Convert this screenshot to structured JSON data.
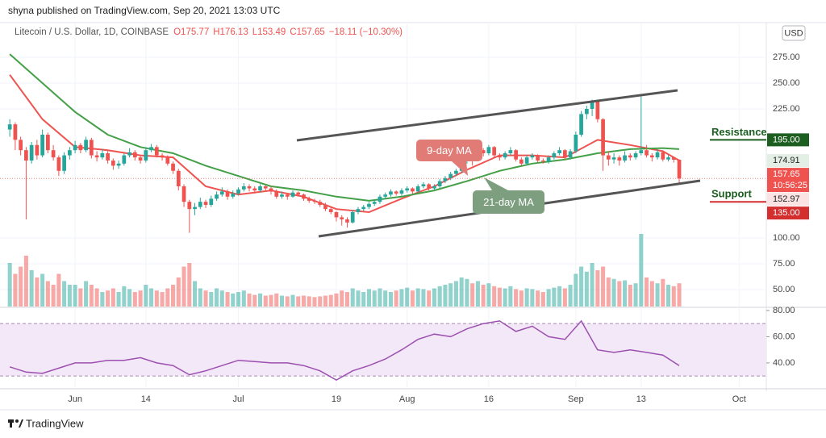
{
  "chart_data": {
    "type": "candlestick",
    "header": "shyna published on TradingView.com, Sep 20, 2021 13:03 UTC",
    "title": "Litecoin / U.S. Dollar, 1D, COINBASE",
    "ohlc_text": [
      "O175.77",
      "H176.13",
      "L153.49",
      "C157.65",
      "−18.11 (−10.30%)"
    ],
    "currency": "USD",
    "footer": "TradingView",
    "up_color": "#26a69a",
    "down_color": "#ef5350",
    "xlim": [
      -1.8,
      139
    ],
    "xticks": [
      {
        "value": 12,
        "label": "Jun"
      },
      {
        "value": 25,
        "label": "14"
      },
      {
        "value": 42,
        "label": "Jul"
      },
      {
        "value": 60,
        "label": "19"
      },
      {
        "value": 73,
        "label": "Aug"
      },
      {
        "value": 88,
        "label": "16"
      },
      {
        "value": 104,
        "label": "Sep"
      },
      {
        "value": 116,
        "label": "13"
      },
      {
        "value": 134,
        "label": "Oct"
      }
    ],
    "ylim": [
      33.6,
      307
    ],
    "yticks": [
      {
        "value": 275,
        "label": "275.00"
      },
      {
        "value": 250,
        "label": "250.00"
      },
      {
        "value": 225,
        "label": "225.00"
      },
      {
        "value": 100,
        "label": "100.00"
      },
      {
        "value": 75,
        "label": "75.00"
      },
      {
        "value": 50,
        "label": "50.00"
      }
    ],
    "grid": true,
    "candles": [
      [
        205,
        215,
        198,
        210
      ],
      [
        210,
        212,
        185,
        195
      ],
      [
        195,
        198,
        180,
        185
      ],
      [
        185,
        188,
        118,
        175
      ],
      [
        175,
        193,
        172,
        190
      ],
      [
        190,
        195,
        176,
        180
      ],
      [
        180,
        205,
        178,
        200
      ],
      [
        200,
        202,
        182,
        185
      ],
      [
        185,
        190,
        175,
        178
      ],
      [
        178,
        180,
        160,
        165
      ],
      [
        165,
        183,
        162,
        180
      ],
      [
        180,
        188,
        176,
        185
      ],
      [
        185,
        194,
        182,
        190
      ],
      [
        190,
        192,
        182,
        185
      ],
      [
        185,
        198,
        183,
        195
      ],
      [
        195,
        197,
        177,
        180
      ],
      [
        180,
        184,
        174,
        178
      ],
      [
        178,
        186,
        176,
        182
      ],
      [
        182,
        184,
        172,
        175
      ],
      [
        175,
        177,
        166,
        170
      ],
      [
        170,
        175,
        167,
        172
      ],
      [
        172,
        182,
        170,
        180
      ],
      [
        180,
        187,
        178,
        183
      ],
      [
        183,
        185,
        175,
        178
      ],
      [
        178,
        180,
        172,
        175
      ],
      [
        175,
        188,
        173,
        185
      ],
      [
        185,
        191,
        183,
        188
      ],
      [
        188,
        190,
        178,
        180
      ],
      [
        180,
        182,
        175,
        178
      ],
      [
        178,
        180,
        170,
        172
      ],
      [
        172,
        174,
        162,
        165
      ],
      [
        165,
        167,
        146,
        150
      ],
      [
        150,
        152,
        130,
        135
      ],
      [
        135,
        137,
        105,
        128
      ],
      [
        128,
        134,
        122,
        130
      ],
      [
        130,
        139,
        128,
        135
      ],
      [
        135,
        137,
        129,
        132
      ],
      [
        132,
        141,
        130,
        138
      ],
      [
        138,
        145,
        136,
        142
      ],
      [
        142,
        149,
        140,
        145
      ],
      [
        145,
        147,
        137,
        140
      ],
      [
        140,
        146,
        138,
        143
      ],
      [
        143,
        149,
        141,
        147
      ],
      [
        147,
        153,
        145,
        150
      ],
      [
        150,
        152,
        145,
        148
      ],
      [
        148,
        150,
        143,
        146
      ],
      [
        146,
        152,
        144,
        150
      ],
      [
        150,
        151,
        145,
        148
      ],
      [
        148,
        150,
        142,
        145
      ],
      [
        145,
        147,
        138,
        140
      ],
      [
        140,
        145,
        138,
        142
      ],
      [
        142,
        143,
        137,
        140
      ],
      [
        140,
        146,
        139,
        144
      ],
      [
        144,
        145,
        140,
        142
      ],
      [
        142,
        143,
        136,
        138
      ],
      [
        138,
        140,
        134,
        136
      ],
      [
        136,
        138,
        133,
        135
      ],
      [
        135,
        137,
        130,
        132
      ],
      [
        132,
        134,
        126,
        128
      ],
      [
        128,
        130,
        123,
        125
      ],
      [
        125,
        126,
        116,
        120
      ],
      [
        120,
        122,
        112,
        118
      ],
      [
        118,
        120,
        110,
        115
      ],
      [
        115,
        127,
        114,
        125
      ],
      [
        125,
        130,
        123,
        128
      ],
      [
        128,
        132,
        126,
        130
      ],
      [
        130,
        135,
        128,
        133
      ],
      [
        133,
        137,
        131,
        135
      ],
      [
        135,
        142,
        133,
        140
      ],
      [
        140,
        144,
        138,
        142
      ],
      [
        142,
        147,
        140,
        145
      ],
      [
        145,
        146,
        141,
        143
      ],
      [
        143,
        148,
        141,
        146
      ],
      [
        146,
        150,
        144,
        148
      ],
      [
        148,
        149,
        143,
        145
      ],
      [
        145,
        152,
        144,
        150
      ],
      [
        150,
        154,
        148,
        152
      ],
      [
        152,
        153,
        146,
        148
      ],
      [
        148,
        152,
        146,
        150
      ],
      [
        150,
        157,
        148,
        155
      ],
      [
        155,
        160,
        153,
        158
      ],
      [
        158,
        164,
        156,
        162
      ],
      [
        162,
        167,
        160,
        165
      ],
      [
        165,
        177,
        163,
        175
      ],
      [
        175,
        183,
        172,
        180
      ],
      [
        180,
        182,
        170,
        178
      ],
      [
        178,
        188,
        176,
        185
      ],
      [
        185,
        187,
        179,
        182
      ],
      [
        182,
        190,
        180,
        188
      ],
      [
        188,
        189,
        178,
        180
      ],
      [
        180,
        182,
        175,
        178
      ],
      [
        178,
        184,
        176,
        182
      ],
      [
        182,
        188,
        180,
        185
      ],
      [
        185,
        186,
        174,
        176
      ],
      [
        176,
        178,
        170,
        172
      ],
      [
        172,
        180,
        170,
        178
      ],
      [
        178,
        182,
        176,
        180
      ],
      [
        180,
        181,
        173,
        175
      ],
      [
        175,
        177,
        172,
        174
      ],
      [
        174,
        180,
        172,
        178
      ],
      [
        178,
        184,
        176,
        182
      ],
      [
        182,
        188,
        180,
        185
      ],
      [
        185,
        186,
        176,
        178
      ],
      [
        178,
        186,
        176,
        184
      ],
      [
        184,
        203,
        182,
        200
      ],
      [
        200,
        223,
        198,
        220
      ],
      [
        220,
        228,
        215,
        225
      ],
      [
        225,
        234,
        218,
        232
      ],
      [
        232,
        234,
        212,
        215
      ],
      [
        215,
        216,
        165,
        180
      ],
      [
        180,
        184,
        170,
        176
      ],
      [
        176,
        182,
        172,
        178
      ],
      [
        178,
        180,
        170,
        175
      ],
      [
        175,
        184,
        173,
        180
      ],
      [
        180,
        182,
        175,
        178
      ],
      [
        178,
        184,
        176,
        182
      ],
      [
        182,
        238,
        180,
        185
      ],
      [
        185,
        190,
        178,
        180
      ],
      [
        180,
        182,
        174,
        178
      ],
      [
        178,
        186,
        176,
        183
      ],
      [
        183,
        185,
        174,
        176
      ],
      [
        176,
        180,
        174,
        178
      ],
      [
        178,
        179,
        173,
        175.77
      ],
      [
        175.77,
        176.13,
        153.49,
        157.65
      ]
    ],
    "volume_lim": [
      0,
      100
    ],
    "volume": [
      60,
      45,
      55,
      70,
      50,
      40,
      45,
      35,
      30,
      45,
      35,
      30,
      30,
      25,
      35,
      30,
      25,
      20,
      22,
      25,
      20,
      28,
      24,
      20,
      22,
      30,
      25,
      22,
      20,
      25,
      30,
      40,
      55,
      60,
      35,
      25,
      22,
      20,
      25,
      22,
      20,
      18,
      20,
      22,
      18,
      16,
      18,
      15,
      16,
      18,
      15,
      14,
      16,
      14,
      15,
      14,
      13,
      14,
      15,
      16,
      18,
      22,
      20,
      25,
      22,
      20,
      24,
      22,
      25,
      22,
      20,
      22,
      24,
      26,
      22,
      25,
      24,
      22,
      25,
      28,
      30,
      32,
      35,
      40,
      38,
      32,
      35,
      30,
      32,
      28,
      26,
      25,
      28,
      24,
      22,
      25,
      24,
      22,
      20,
      24,
      26,
      28,
      25,
      30,
      45,
      55,
      48,
      60,
      50,
      55,
      40,
      38,
      35,
      36,
      30,
      32,
      100,
      40,
      35,
      32,
      38,
      30,
      28,
      32
    ],
    "ma": [
      {
        "name": "9-day MA",
        "color": "#ef5350",
        "x": [
          0,
          6,
          12,
          18,
          24,
          30,
          36,
          42,
          48,
          54,
          60,
          66,
          72,
          78,
          84,
          90,
          96,
          102,
          108,
          114,
          120,
          123
        ],
        "values": [
          258,
          215,
          188,
          185,
          180,
          178,
          150,
          142,
          146,
          140,
          128,
          125,
          138,
          150,
          166,
          180,
          180,
          178,
          195,
          190,
          184,
          175
        ]
      },
      {
        "name": "21-day MA",
        "color": "#43a047",
        "x": [
          0,
          6,
          12,
          18,
          24,
          30,
          36,
          42,
          48,
          54,
          60,
          66,
          72,
          78,
          84,
          90,
          96,
          102,
          108,
          114,
          120,
          123
        ],
        "values": [
          278,
          250,
          222,
          200,
          188,
          182,
          170,
          160,
          150,
          146,
          140,
          136,
          140,
          146,
          155,
          165,
          172,
          176,
          182,
          186,
          187,
          186
        ]
      }
    ],
    "price_tags": [
      {
        "value": 195,
        "label": "195.00",
        "color": "#1b5e20",
        "text_color": "#ffffff"
      },
      {
        "value": 174.91,
        "label": "174.91",
        "color": "#e3efe4",
        "text_color": "#222222"
      },
      {
        "value": 157.65,
        "label": "157.65",
        "sublabel": "10:56:25",
        "color": "#ef5350",
        "text_color": "#ffffff"
      },
      {
        "value": 152.97,
        "label": "152.97",
        "color": "#fbe3e3",
        "text_color": "#222222"
      },
      {
        "value": 135,
        "label": "135.00",
        "color": "#d32f2f",
        "text_color": "#ffffff"
      }
    ],
    "levels": [
      {
        "name": "Resistance",
        "value": 195,
        "color": "#1b5e20",
        "line_color": "#1b5e20"
      },
      {
        "name": "Support",
        "value": 135,
        "color": "#1b5e20",
        "line_color": "#d32f2f"
      }
    ],
    "rsi": {
      "color": "#9c4fb0",
      "ylim": [
        21.5,
        81.8
      ],
      "yticks": [
        {
          "value": 80,
          "label": "80.00"
        },
        {
          "value": 60,
          "label": "60.00"
        },
        {
          "value": 40,
          "label": "40.00"
        }
      ],
      "bands": [
        30,
        70
      ],
      "x": [
        0,
        3,
        6,
        9,
        12,
        15,
        18,
        21,
        24,
        27,
        30,
        33,
        36,
        39,
        42,
        45,
        48,
        51,
        54,
        57,
        60,
        63,
        66,
        69,
        72,
        75,
        78,
        81,
        84,
        87,
        90,
        93,
        96,
        99,
        102,
        105,
        108,
        111,
        114,
        117,
        120,
        123
      ],
      "values": [
        37,
        33,
        32,
        36,
        40,
        40,
        42,
        42,
        44,
        40,
        38,
        31,
        34,
        38,
        42,
        41,
        40,
        40,
        38,
        34,
        27,
        34,
        38,
        43,
        50,
        58,
        62,
        60,
        66,
        70,
        72,
        64,
        68,
        60,
        58,
        72,
        50,
        48,
        50,
        48,
        46,
        38
      ]
    }
  }
}
